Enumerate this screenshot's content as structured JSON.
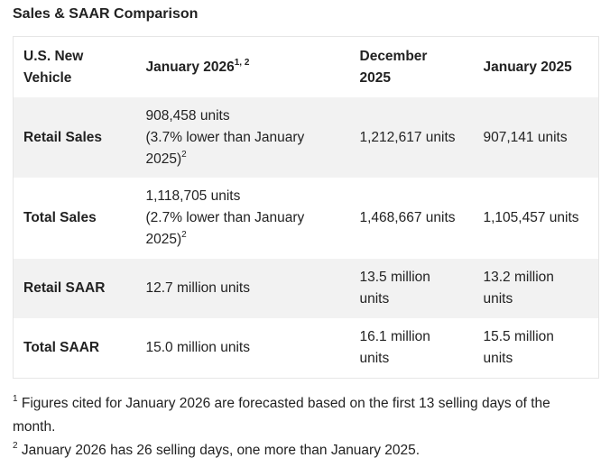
{
  "title": "Sales & SAAR Comparison",
  "table": {
    "header": [
      {
        "text": "U.S. New Vehicle"
      },
      {
        "text": "January 2026",
        "sup": "1, 2"
      },
      {
        "text": "December 2025"
      },
      {
        "text": "January 2025"
      }
    ],
    "rows": [
      [
        {
          "text": "Retail Sales"
        },
        {
          "text": "908,458 units",
          "note": "(3.7% lower than January 2025)",
          "sup": "2"
        },
        {
          "text": "1,212,617 units"
        },
        {
          "text": "907,141 units"
        }
      ],
      [
        {
          "text": "Total Sales"
        },
        {
          "text": "1,118,705 units",
          "note": "(2.7% lower than January 2025)",
          "sup": "2"
        },
        {
          "text": "1,468,667 units"
        },
        {
          "text": "1,105,457 units"
        }
      ],
      [
        {
          "text": "Retail SAAR"
        },
        {
          "text": "12.7 million units"
        },
        {
          "text": "13.5 million units"
        },
        {
          "text": "13.2 million units"
        }
      ],
      [
        {
          "text": "Total SAAR"
        },
        {
          "text": "15.0 million units"
        },
        {
          "text": "16.1 million units"
        },
        {
          "text": "15.5 million units"
        }
      ]
    ]
  },
  "footnotes": [
    {
      "marker": "1",
      "text": "Figures cited for January 2026 are forecasted based on the first 13 selling days of the month."
    },
    {
      "marker": "2",
      "text": "January 2026 has 26 selling days, one more than January 2025."
    }
  ]
}
